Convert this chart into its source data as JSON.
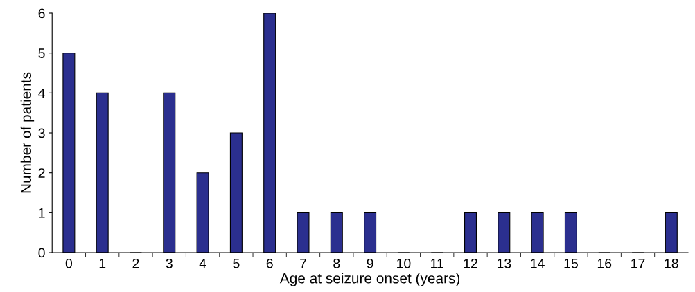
{
  "chart_data": {
    "type": "bar",
    "xlabel": "Age at seizure onset (years)",
    "ylabel": "Number of patients",
    "categories": [
      "0",
      "1",
      "2",
      "3",
      "4",
      "5",
      "6",
      "7",
      "8",
      "9",
      "10",
      "11",
      "12",
      "13",
      "14",
      "15",
      "16",
      "17",
      "18"
    ],
    "values": [
      5,
      4,
      0,
      4,
      2,
      3,
      6,
      1,
      1,
      1,
      0,
      0,
      1,
      1,
      1,
      1,
      0,
      0,
      1
    ],
    "color": "#2b2f8f",
    "ylim": [
      0,
      6
    ],
    "yticks": [
      0,
      1,
      2,
      3,
      4,
      5,
      6
    ],
    "grid": false,
    "legend": false
  }
}
